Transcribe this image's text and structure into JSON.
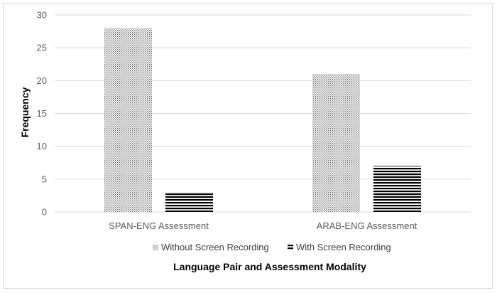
{
  "chart_data": {
    "type": "bar",
    "categories": [
      "SPAN-ENG Assessment",
      "ARAB-ENG Assessment"
    ],
    "series": [
      {
        "name": "Without Screen Recording",
        "values": [
          28,
          21
        ],
        "pattern": "dots"
      },
      {
        "name": "With Screen Recording",
        "values": [
          3,
          7
        ],
        "pattern": "horizontal-lines"
      }
    ],
    "xlabel": "Language Pair and Assessment Modality",
    "ylabel": "Frequency",
    "ylim": [
      0,
      30
    ],
    "yticks": [
      0,
      5,
      10,
      15,
      20,
      25,
      30
    ],
    "grid": true,
    "legend_position": "bottom",
    "colors": {
      "bar": "#000000",
      "grid": "#d9d9d9",
      "axis_text": "#595959"
    }
  }
}
